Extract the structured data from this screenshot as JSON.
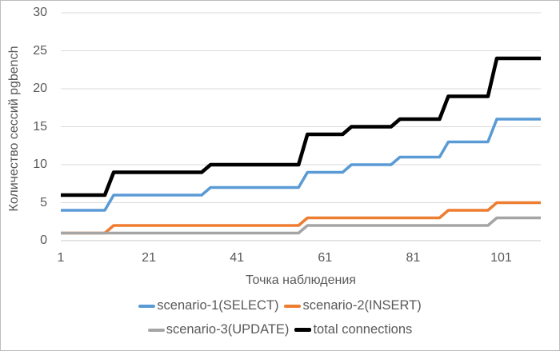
{
  "chart_data": {
    "type": "line",
    "subtype": "step",
    "title": "",
    "xlabel": "Точка наблюдения",
    "ylabel": "Количество сессий pgbench",
    "xlim": [
      1,
      110
    ],
    "ylim": [
      0,
      30
    ],
    "x_ticks": [
      1,
      21,
      41,
      61,
      81,
      101
    ],
    "y_ticks": [
      0,
      5,
      10,
      15,
      20,
      25,
      30
    ],
    "grid": "horizontal",
    "gridline_color": "#D9D9D9",
    "axis_line_color": "#C9C9C9",
    "text_color": "#595959",
    "legend_position": "bottom",
    "step_transition_x": [
      12,
      34,
      56,
      66,
      77,
      88,
      99
    ],
    "series": [
      {
        "name": "scenario-1(SELECT)",
        "color": "#5B9BD5",
        "plateau_values": [
          4,
          6,
          7,
          9,
          10,
          11,
          13,
          16
        ]
      },
      {
        "name": "scenario-2(INSERT)",
        "color": "#ED7D31",
        "plateau_values": [
          1,
          2,
          2,
          3,
          3,
          3,
          4,
          5
        ]
      },
      {
        "name": "scenario-3(UPDATE)",
        "color": "#A5A5A5",
        "plateau_values": [
          1,
          1,
          1,
          2,
          2,
          2,
          2,
          3
        ]
      },
      {
        "name": "total connections",
        "color": "#000000",
        "plateau_values": [
          6,
          9,
          10,
          14,
          15,
          16,
          19,
          24
        ]
      }
    ]
  }
}
